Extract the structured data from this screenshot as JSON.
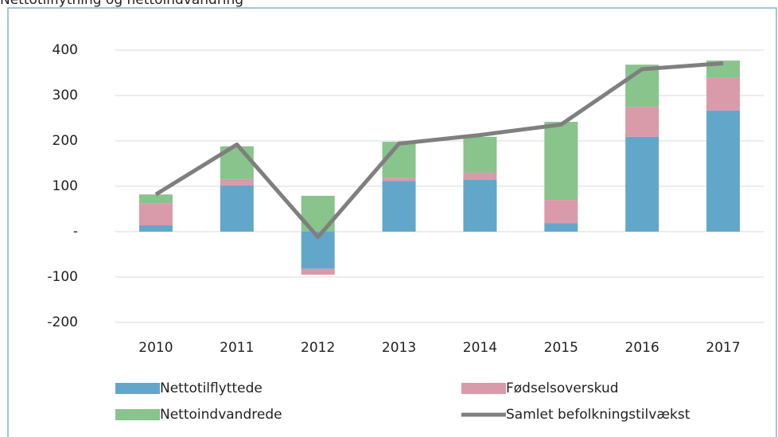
{
  "chart_data": {
    "type": "bar",
    "title": "Nettotilflytning og nettoindvandring",
    "categories": [
      "2010",
      "2011",
      "2012",
      "2013",
      "2014",
      "2015",
      "2016",
      "2017"
    ],
    "series": [
      {
        "name": "Nettotilflyttede",
        "color": "#62a7ca",
        "values": [
          14,
          102,
          -82,
          112,
          114,
          19,
          209,
          267
        ]
      },
      {
        "name": "Fødselsoverskud",
        "color": "#d99aaa",
        "values": [
          49,
          14,
          -13,
          6,
          16,
          51,
          66,
          72
        ]
      },
      {
        "name": "Nettoindvandrede",
        "color": "#88c48b",
        "values": [
          19,
          72,
          79,
          80,
          79,
          172,
          93,
          38
        ]
      },
      {
        "name": "Samlet befolkningstilvækst",
        "color": "#7f7f7f",
        "type": "line",
        "values": [
          82,
          192,
          -12,
          194,
          213,
          236,
          358,
          371
        ]
      }
    ],
    "ylim": [
      -200,
      400
    ],
    "yticks": [
      -200,
      -100,
      {
        "value": 0,
        "label": "-"
      },
      100,
      200,
      300,
      400
    ],
    "grid": true
  }
}
